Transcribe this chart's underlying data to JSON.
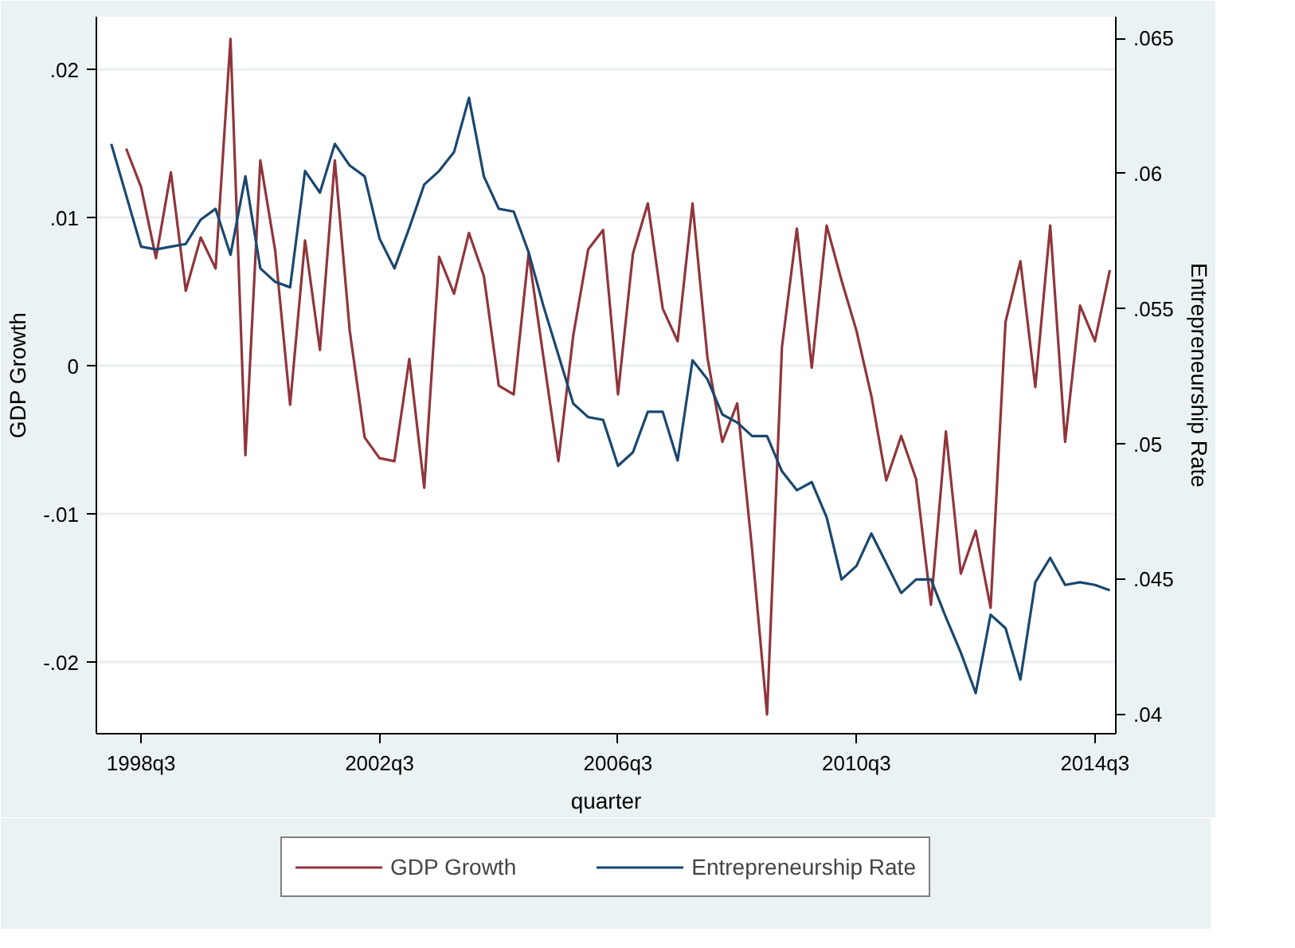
{
  "chart_data": {
    "type": "line",
    "xlabel": "quarter",
    "ylabel": "GDP Growth",
    "y2label": "Entrepreneurship Rate",
    "categories": [
      null,
      null,
      "1998q3",
      null,
      null,
      null,
      null,
      null,
      null,
      null,
      null,
      null,
      null,
      null,
      null,
      null,
      null,
      null,
      "2002q3",
      null,
      null,
      null,
      null,
      null,
      null,
      null,
      null,
      null,
      null,
      null,
      null,
      null,
      null,
      null,
      "2006q3",
      null,
      null,
      null,
      null,
      null,
      null,
      null,
      null,
      null,
      null,
      null,
      null,
      null,
      null,
      null,
      "2010q3",
      null,
      null,
      null,
      null,
      null,
      null,
      null,
      null,
      null,
      null,
      null,
      null,
      null,
      null,
      null,
      "2014q3",
      null
    ],
    "ylim": [
      -0.0248,
      0.0236
    ],
    "yticks": [
      {
        "value": 0.02,
        "label": ".02"
      },
      {
        "value": 0.01,
        "label": ".01"
      },
      0,
      {
        "value": -0.01,
        "label": "-.01"
      },
      {
        "value": -0.02,
        "label": "-.02"
      }
    ],
    "y2lim": [
      0.0393,
      0.0658
    ],
    "y2ticks": [
      {
        "value": 0.065,
        "label": ".065"
      },
      {
        "value": 0.06,
        "label": ".06"
      },
      {
        "value": 0.055,
        "label": ".055"
      },
      {
        "value": 0.05,
        "label": ".05"
      },
      {
        "value": 0.045,
        "label": ".045"
      },
      {
        "value": 0.04,
        "label": ".04"
      }
    ],
    "grid": "y",
    "legend": "bottom",
    "marker": "none",
    "line_style": "solid",
    "series": [
      {
        "name": "GDP Growth",
        "color": "#90353b",
        "values": [
          null,
          0.0147,
          0.0121,
          0.0073,
          0.0131,
          0.0051,
          0.0087,
          0.0066,
          0.0221,
          -0.006,
          0.0139,
          0.0078,
          -0.0026,
          0.0085,
          0.0011,
          0.0139,
          0.0024,
          -0.0048,
          -0.0062,
          -0.0064,
          0.0005,
          -0.0082,
          0.0074,
          0.0049,
          0.009,
          0.0061,
          -0.0013,
          -0.0019,
          0.0076,
          0.0006,
          -0.0064,
          0.0021,
          0.0079,
          0.0092,
          -0.0019,
          0.0076,
          0.011,
          0.0039,
          0.0017,
          0.011,
          0.0006,
          -0.0051,
          -0.0025,
          -0.0124,
          -0.0235,
          0.0013,
          0.0093,
          -0.0001,
          0.0095,
          0.0058,
          0.0024,
          -0.002,
          -0.0077,
          -0.0047,
          -0.0076,
          -0.0161,
          -0.0044,
          -0.014,
          -0.0111,
          -0.0163,
          0.003,
          0.0071,
          -0.0014,
          0.0095,
          -0.0051,
          0.0041,
          0.0017,
          0.0065
        ]
      },
      {
        "name": "Entrepreneurship Rate",
        "color": "#1a476f",
        "axis": "y2",
        "values": [
          0.0611,
          0.0592,
          0.0573,
          0.0572,
          0.0573,
          0.0574,
          0.0583,
          0.0587,
          0.057,
          0.0599,
          0.0565,
          0.056,
          0.0558,
          0.0601,
          0.0593,
          0.0611,
          0.0603,
          0.0599,
          0.0576,
          0.0565,
          0.058,
          0.0596,
          0.0601,
          0.0608,
          0.0628,
          0.0599,
          0.0587,
          0.0586,
          0.0571,
          0.0551,
          0.0533,
          0.0515,
          0.051,
          0.0509,
          0.0492,
          0.0497,
          0.0512,
          0.0512,
          0.0494,
          0.0531,
          0.0524,
          0.0511,
          0.0508,
          0.0503,
          0.0503,
          0.049,
          0.0483,
          0.0486,
          0.0473,
          0.045,
          0.0455,
          0.0467,
          0.0456,
          0.0445,
          0.045,
          0.045,
          0.0436,
          0.0423,
          0.0408,
          0.0437,
          0.0432,
          0.0413,
          0.0449,
          0.0458,
          0.0448,
          0.0449,
          0.0448,
          0.0446
        ]
      }
    ]
  }
}
